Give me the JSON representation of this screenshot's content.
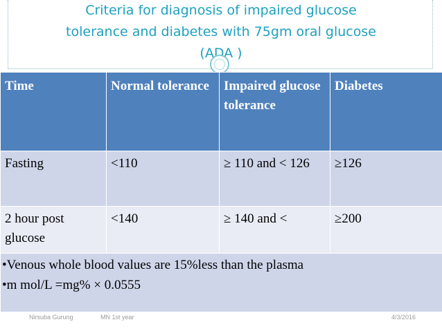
{
  "title": {
    "line1": "Criteria for diagnosis of impaired glucose",
    "line2": "tolerance  and diabetes with 75gm oral glucose",
    "line3": "(ADA )"
  },
  "table": {
    "headers": [
      "Time",
      "Normal tolerance",
      "Impaired glucose tolerance",
      "Diabetes"
    ],
    "rows": [
      [
        "Fasting",
        "<110",
        "≥ 110 and < 126",
        "≥126"
      ],
      [
        "2 hour post glucose",
        "<140",
        "≥ 140 and <",
        "≥200"
      ]
    ],
    "notes": [
      "•Venous whole blood  values are 15%less than  the plasma",
      "•m mol/L =mg% × 0.0555"
    ]
  },
  "footer": {
    "author": "Nirsuba Gurung",
    "program": "MN 1st year",
    "date": "4/3/2016"
  },
  "colors": {
    "title": "#1fa0bf",
    "header_bg": "#4f81bd",
    "row_dark": "#cfd5e9",
    "row_light": "#e9ecf5"
  }
}
